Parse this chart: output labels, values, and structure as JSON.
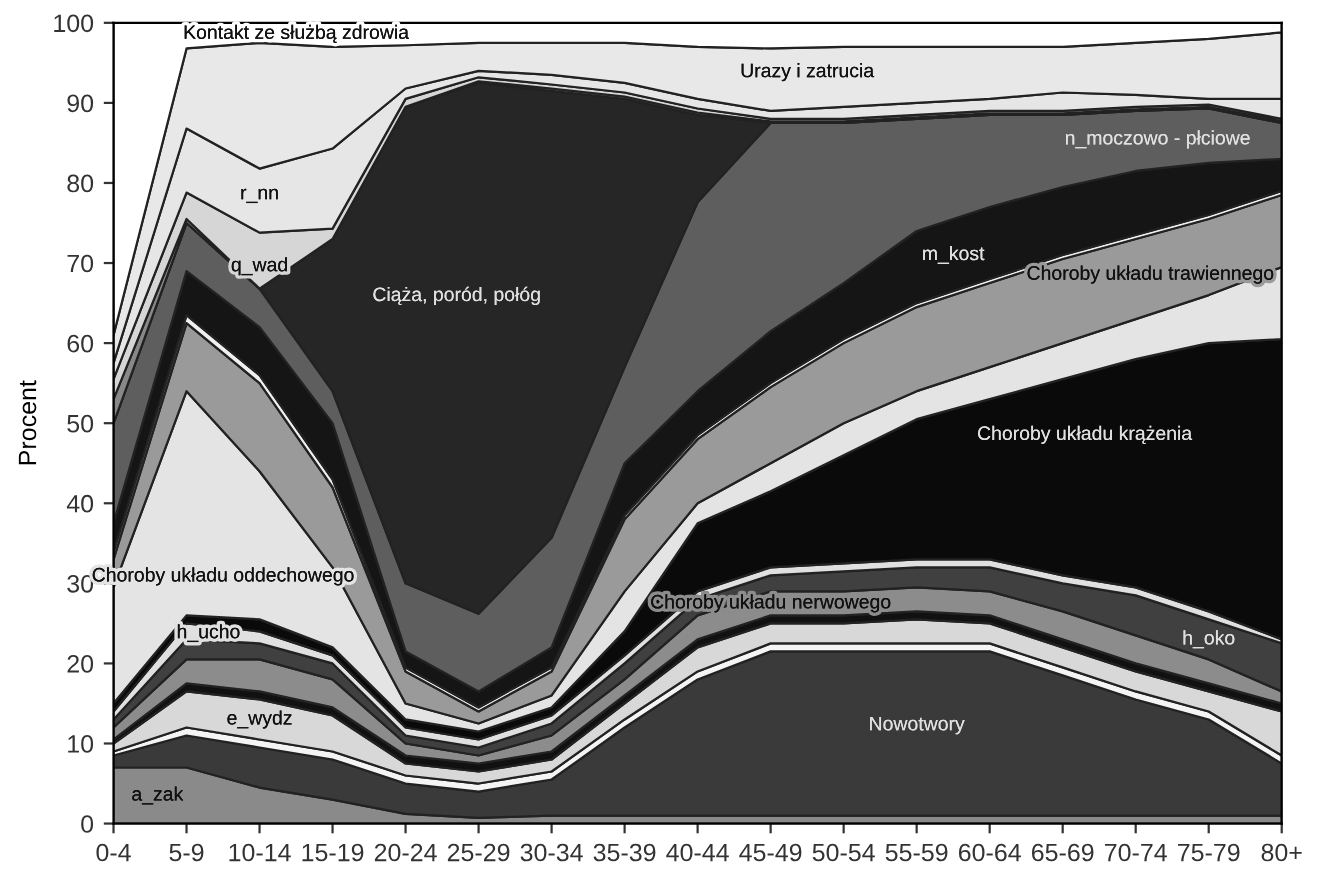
{
  "chart_data": {
    "type": "area",
    "stacked": true,
    "ylabel": "Procent",
    "categories": [
      "0-4",
      "5-9",
      "10-14",
      "15-19",
      "20-24",
      "25-29",
      "30-34",
      "35-39",
      "40-44",
      "45-49",
      "50-54",
      "55-59",
      "60-64",
      "65-69",
      "70-74",
      "75-79",
      "80+"
    ],
    "ylim": [
      0,
      100
    ],
    "yticks": [
      0,
      10,
      20,
      30,
      40,
      50,
      60,
      70,
      80,
      90,
      100
    ],
    "grid": false,
    "legend": false,
    "series": [
      {
        "name": "a_zak",
        "color": "#8a8a8a",
        "values": [
          7,
          7,
          4.5,
          3,
          1.2,
          0.7,
          1,
          1,
          1,
          1,
          1,
          1,
          1,
          1,
          1,
          1,
          1
        ]
      },
      {
        "name": "Nowotwory",
        "color": "#3a3a3a",
        "values": [
          1.5,
          4,
          5,
          5,
          3.8,
          3.3,
          4.5,
          11,
          17,
          20.5,
          20.5,
          20.5,
          20.5,
          17.5,
          14.5,
          12,
          6.5
        ]
      },
      {
        "color": "#f4f4f4",
        "values": [
          0.5,
          1,
          1,
          1,
          1,
          1,
          1,
          1,
          1,
          1,
          1,
          1,
          1,
          1,
          1,
          1,
          1
        ]
      },
      {
        "name": "e_wydz",
        "color": "#d8d8d8",
        "values": [
          1,
          4.5,
          5,
          4.5,
          1.5,
          1.5,
          1.5,
          2,
          3,
          2.5,
          2.5,
          3,
          2.5,
          2.5,
          2.5,
          2.5,
          5.5
        ]
      },
      {
        "color": "#111111",
        "values": [
          0.5,
          1,
          1,
          1,
          1,
          1,
          1,
          1,
          1,
          1,
          1,
          1,
          1,
          1,
          1,
          1,
          1
        ]
      },
      {
        "name": "Choroby układu nerwowego",
        "color": "#8c8c8c",
        "values": [
          1.5,
          3,
          4,
          3.5,
          1.5,
          1,
          2,
          2,
          3,
          3,
          3,
          3,
          3,
          3.5,
          3.5,
          3,
          1.5
        ]
      },
      {
        "name": "h_oko",
        "color": "#404040",
        "values": [
          1,
          2.5,
          2,
          2,
          1,
          1,
          1.5,
          2,
          2,
          2,
          2.5,
          2.5,
          3,
          3.5,
          5,
          5,
          6
        ]
      },
      {
        "name": "h_ucho",
        "color": "#e0e0e0",
        "values": [
          1,
          2,
          1.5,
          1,
          1,
          1,
          1,
          1,
          1,
          1,
          1,
          1,
          1,
          1,
          1,
          1,
          0.5
        ]
      },
      {
        "name": "Choroby układu krążenia",
        "color": "#0a0a0a",
        "values": [
          1,
          1,
          1.5,
          1,
          1,
          1,
          1,
          3,
          8.5,
          9.5,
          13.5,
          17.5,
          20,
          24.5,
          28.5,
          33.5,
          37.5
        ]
      },
      {
        "name": "Choroby układu oddechowego",
        "color": "#e4e4e4",
        "values": [
          14.5,
          28,
          18.5,
          10,
          2,
          1,
          1.5,
          5,
          2.5,
          3.5,
          4,
          3.5,
          4,
          4.5,
          5,
          6,
          9
        ]
      },
      {
        "name": "Choroby układu trawiennego",
        "color": "#9a9a9a",
        "values": [
          3.5,
          8.5,
          11,
          10,
          4,
          1.5,
          3,
          9,
          8,
          9.5,
          10,
          10.5,
          10.5,
          10.5,
          10,
          9.5,
          9
        ]
      },
      {
        "color": "#f0f0f0",
        "values": [
          1,
          1,
          1,
          1,
          0.5,
          0.5,
          0.5,
          0.5,
          0.5,
          0.5,
          0.5,
          0.5,
          0.5,
          0.5,
          0.5,
          0.5,
          0.5
        ]
      },
      {
        "name": "m_kost",
        "color": "#151515",
        "values": [
          3.5,
          5.5,
          6,
          7,
          2,
          2,
          2.5,
          6.5,
          5.5,
          6.5,
          7,
          9,
          9,
          8.5,
          8,
          6.5,
          4
        ]
      },
      {
        "name": "n_moczowo - płciowe",
        "color": "#5e5e5e",
        "values": [
          12.5,
          6,
          4.8,
          4,
          8.5,
          9.7,
          13.7,
          12,
          23.6,
          26,
          20,
          14,
          11.5,
          9,
          7.5,
          6.8,
          4.5
        ]
      },
      {
        "name": "Ciąża, poród, połóg",
        "color": "#262626",
        "values": [
          0,
          0,
          0,
          19,
          59.5,
          66.3,
          55.8,
          33.5,
          10.9,
          0,
          0,
          0,
          0,
          0,
          0,
          0,
          0
        ]
      },
      {
        "color": "#888888",
        "values": [
          3,
          0.5,
          0,
          0,
          0,
          0.2,
          0.3,
          0.3,
          0.3,
          0.2,
          0.2,
          0.2,
          0.2,
          0.2,
          0.2,
          0.2,
          0.2
        ]
      },
      {
        "name": "q_wad",
        "color": "#d6d6d6",
        "values": [
          2.5,
          3.3,
          7,
          1.3,
          1,
          0.5,
          0.5,
          0.5,
          0.5,
          0.3,
          0.3,
          0.3,
          0.3,
          0.3,
          0.3,
          0.3,
          0.3
        ]
      },
      {
        "name": "r_nn",
        "color": "#e6e6e6",
        "values": [
          2,
          8,
          8,
          10,
          1.3,
          0.8,
          1.2,
          1.2,
          1.2,
          1,
          1.5,
          1.5,
          1.5,
          2.3,
          1.5,
          0.7,
          2.5
        ]
      },
      {
        "name": "Urazy i zatrucia",
        "color": "#e8e8e8",
        "values": [
          3.5,
          10,
          15.7,
          12.7,
          5.4,
          3.5,
          4,
          5,
          6.5,
          7.8,
          7.5,
          7,
          6.5,
          5.7,
          6.5,
          7.5,
          8.3
        ]
      },
      {
        "name": "Kontakt ze służbą zdrowia",
        "color": "#ffffff",
        "values": [
          39,
          3.2,
          2.5,
          3,
          2.8,
          2.5,
          2.5,
          2.5,
          3,
          3.2,
          3,
          3,
          3,
          3,
          2.5,
          2,
          1.2
        ]
      }
    ]
  }
}
